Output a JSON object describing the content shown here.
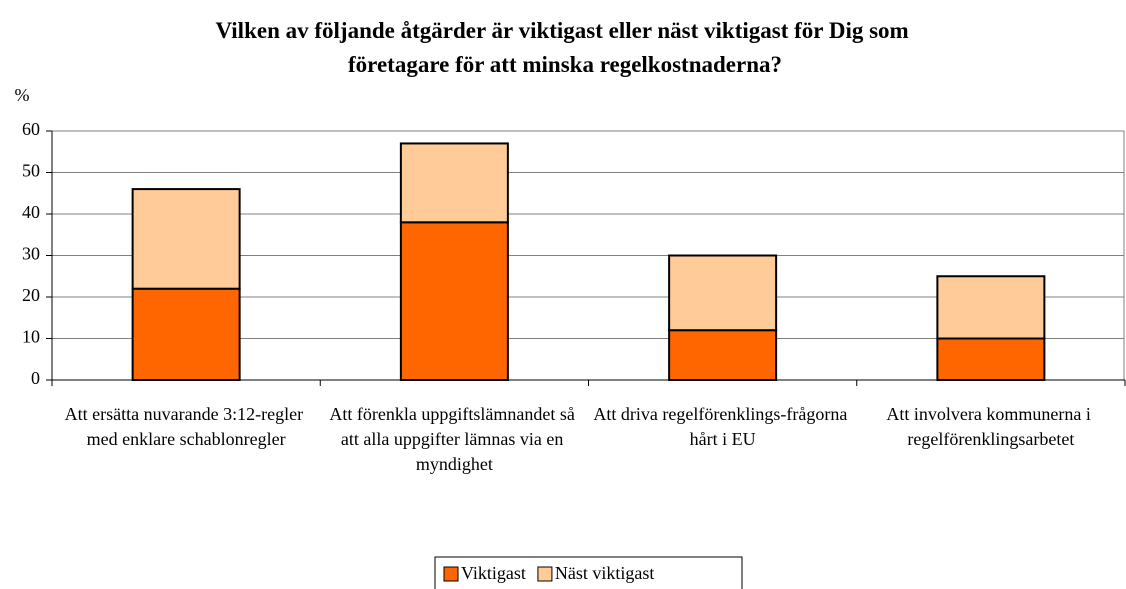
{
  "chart_data": {
    "type": "stacked_bar",
    "title": "Vilken av följande åtgärder är viktigast eller näst viktigast för Dig som företagare för att minska regelkostnaderna?",
    "y_label": "%",
    "categories": [
      "Att ersätta nuvarande 3:12-regler med enklare schablonregler",
      "Att förenkla uppgiftslämnandet så att alla uppgifter lämnas via en myndighet",
      "Att driva regelförenklings-frågorna hårt i EU",
      "Att involvera kommunerna i regelförenklingsarbetet"
    ],
    "series": [
      {
        "name": "Viktigast",
        "color": "#ff6600",
        "values": [
          22,
          38,
          12,
          10
        ]
      },
      {
        "name": "Näst viktigast",
        "color": "#ffcc99",
        "values": [
          24,
          19,
          18,
          15
        ]
      }
    ],
    "ylim": [
      0,
      60
    ],
    "yticks": [
      0,
      10,
      20,
      30,
      40,
      50,
      60
    ],
    "grid": true,
    "legend": "bottom"
  }
}
